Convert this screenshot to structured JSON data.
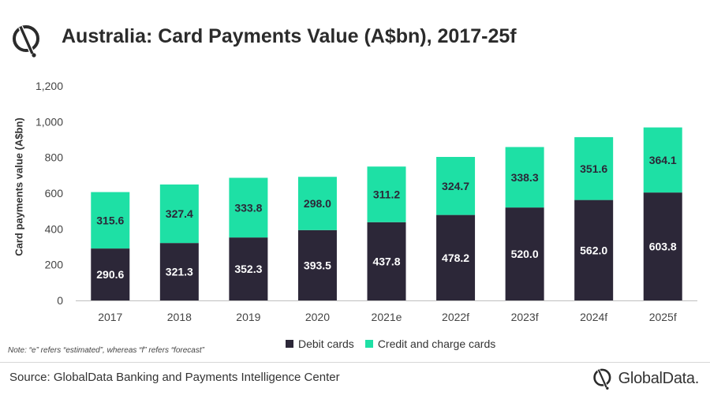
{
  "header": {
    "title": "Australia: Card Payments Value (A$bn), 2017-25f"
  },
  "note": "Note: “e” refers “estimated”, whereas “f” refers “forecast”",
  "source": "Source: GlobalData Banking and Payments Intelligence Center",
  "brand": {
    "name": "GlobalData."
  },
  "colors": {
    "debit": "#2c2738",
    "credit": "#1ee0a5",
    "accent": "#1ee0a5"
  },
  "chart_data": {
    "type": "bar",
    "stacked": true,
    "categories": [
      "2017",
      "2018",
      "2019",
      "2020",
      "2021e",
      "2022f",
      "2023f",
      "2024f",
      "2025f"
    ],
    "series": [
      {
        "name": "Debit cards",
        "color": "#2c2738",
        "values": [
          290.6,
          321.3,
          352.3,
          393.5,
          437.8,
          478.2,
          520.0,
          562.0,
          603.8
        ],
        "labels": [
          "290.6",
          "321.3",
          "352.3",
          "393.5",
          "437.8",
          "478.2",
          "520.0",
          "562.0",
          "603.8"
        ]
      },
      {
        "name": "Credit and charge cards",
        "color": "#1ee0a5",
        "values": [
          315.6,
          327.4,
          333.8,
          298.0,
          311.2,
          324.7,
          338.3,
          351.6,
          364.1
        ],
        "labels": [
          "315.6",
          "327.4",
          "333.8",
          "298.0",
          "311.2",
          "324.7",
          "338.3",
          "351.6",
          "364.1"
        ]
      }
    ],
    "ylabel": "Card payments value (A$bn)",
    "xlabel": "",
    "ylim": [
      0,
      1200
    ],
    "yticks": [
      0,
      200,
      400,
      600,
      800,
      1000,
      1200
    ],
    "ytick_labels": [
      "0",
      "200",
      "400",
      "600",
      "800",
      "1,000",
      "1,200"
    ],
    "grid": false,
    "legend_position": "bottom"
  }
}
